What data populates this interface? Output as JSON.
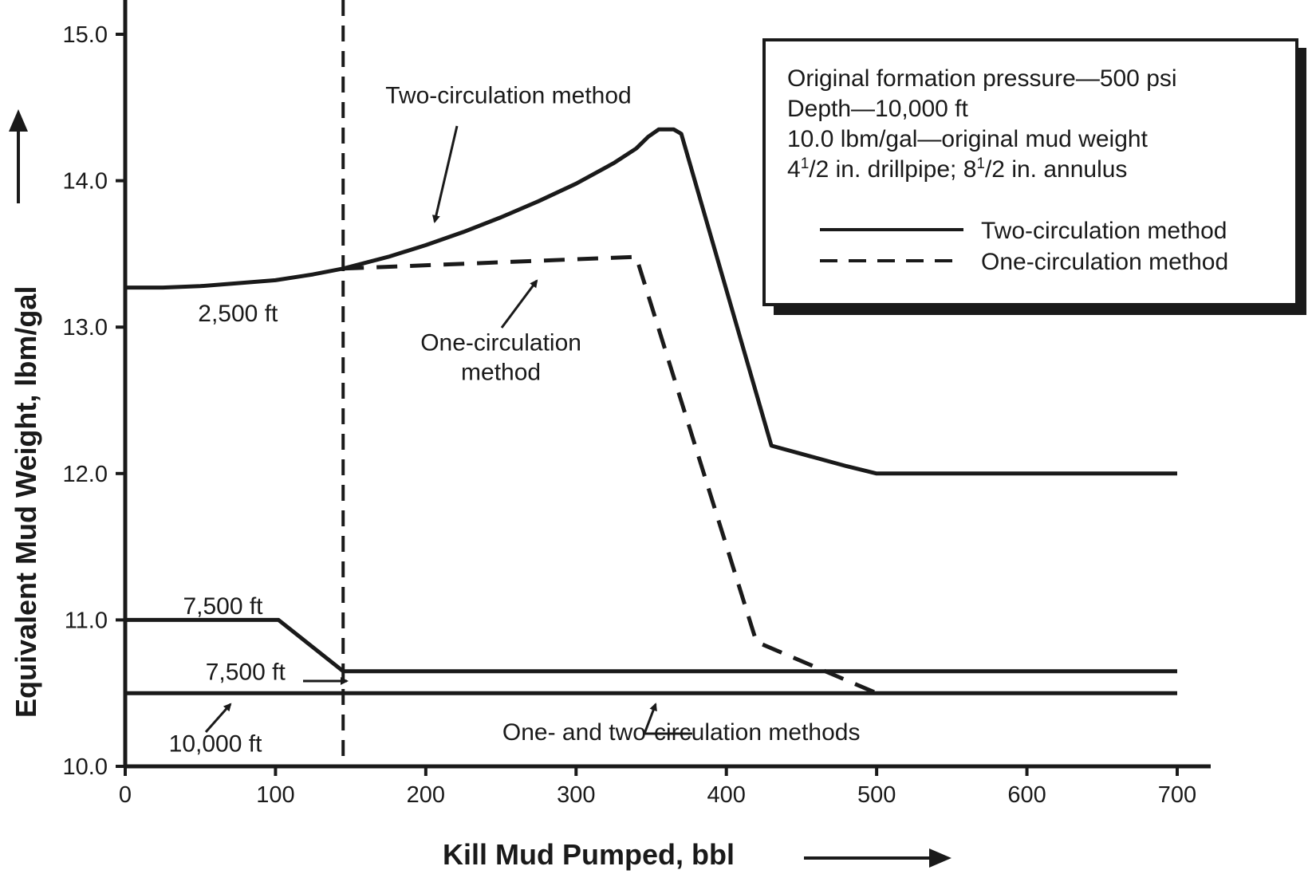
{
  "chart_data": {
    "type": "line",
    "xlabel": "Kill Mud Pumped, bbl",
    "ylabel": "Equivalent Mud Weight, lbm/gal",
    "xlim": [
      0,
      700
    ],
    "ylim": [
      10.0,
      15.0
    ],
    "x_ticks": [
      "0",
      "100",
      "200",
      "300",
      "400",
      "500",
      "600",
      "700"
    ],
    "y_ticks": [
      "10.0",
      "11.0",
      "12.0",
      "13.0",
      "14.0",
      "15.0"
    ],
    "grid": false,
    "info_box": [
      "Original formation pressure—500 psi",
      "Depth—10,000 ft",
      "10.0 lbm/gal—original mud weight",
      "4",
      "1",
      "/2 in. drillpipe; 8",
      "1",
      "/2 in. annulus"
    ],
    "legend": {
      "position": "top-right",
      "entries": [
        {
          "label": "Two-circulation method",
          "style": "solid"
        },
        {
          "label": "One-circulation method",
          "style": "dashed"
        }
      ]
    },
    "reference_line": {
      "x": 145,
      "style": "dashed"
    },
    "series": [
      {
        "key": "two_2500",
        "style": "solid",
        "points": [
          [
            0,
            13.27
          ],
          [
            25,
            13.27
          ],
          [
            50,
            13.28
          ],
          [
            75,
            13.3
          ],
          [
            100,
            13.32
          ],
          [
            125,
            13.36
          ],
          [
            145,
            13.4
          ],
          [
            175,
            13.48
          ],
          [
            200,
            13.56
          ],
          [
            225,
            13.65
          ],
          [
            250,
            13.75
          ],
          [
            275,
            13.86
          ],
          [
            300,
            13.98
          ],
          [
            325,
            14.12
          ],
          [
            340,
            14.22
          ],
          [
            348,
            14.3
          ],
          [
            355,
            14.35
          ],
          [
            365,
            14.35
          ],
          [
            370,
            14.32
          ],
          [
            430,
            12.19
          ],
          [
            480,
            12.05
          ],
          [
            500,
            12.0
          ],
          [
            700,
            12.0
          ]
        ]
      },
      {
        "key": "one_2500",
        "style": "dashed",
        "points": [
          [
            145,
            13.4
          ],
          [
            340,
            13.48
          ],
          [
            420,
            10.85
          ],
          [
            500,
            10.5
          ]
        ]
      },
      {
        "key": "mid_7500",
        "style": "solid",
        "points": [
          [
            0,
            11.0
          ],
          [
            102,
            11.0
          ],
          [
            145,
            10.65
          ],
          [
            700,
            10.65
          ]
        ]
      },
      {
        "key": "deep_10000",
        "style": "solid",
        "points": [
          [
            0,
            10.5
          ],
          [
            700,
            10.5
          ]
        ]
      }
    ],
    "annotations": [
      {
        "text": "Two-circulation method",
        "x": 255,
        "y": 14.53
      },
      {
        "text": "2,500 ft",
        "x": 75,
        "y": 13.04
      },
      {
        "text": "One-circulation",
        "x": 250,
        "y": 12.84
      },
      {
        "text": "method",
        "x": 250,
        "y": 12.64
      },
      {
        "text": "7,500 ft",
        "x": 65,
        "y": 11.04
      },
      {
        "text": "7,500 ft",
        "x": 80,
        "y": 10.59
      },
      {
        "text": "10,000 ft",
        "x": 60,
        "y": 10.1
      },
      {
        "text": "One- and two-circulation methods",
        "x": 370,
        "y": 10.18
      }
    ]
  }
}
